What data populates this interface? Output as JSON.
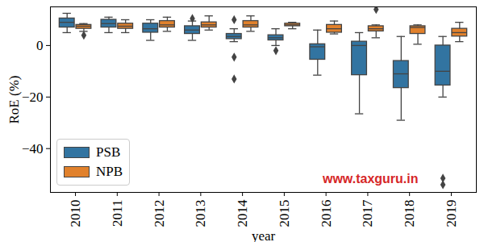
{
  "chart_data": {
    "type": "boxplot",
    "xlabel": "year",
    "ylabel": "RoE (%)",
    "categories": [
      "2010",
      "2011",
      "2012",
      "2013",
      "2014",
      "2015",
      "2016",
      "2017",
      "2018",
      "2019"
    ],
    "ylim": [
      -57,
      15
    ],
    "yticks": [
      -40,
      -20,
      0
    ],
    "grid": false,
    "legend": "lower left",
    "annotations": [
      {
        "text": "www.taxguru.in",
        "color": "#d62728"
      }
    ],
    "series": [
      {
        "name": "PSB",
        "color": "#3274a1",
        "values": [
          {
            "whisker_low": 5,
            "q1": 7,
            "median": 9,
            "q3": 10.5,
            "whisker_high": 12.5,
            "outliers": []
          },
          {
            "whisker_low": 5,
            "q1": 7,
            "median": 8.5,
            "q3": 10,
            "whisker_high": 11,
            "outliers": []
          },
          {
            "whisker_low": 2,
            "q1": 5,
            "median": 6.5,
            "q3": 8.5,
            "whisker_high": 10,
            "outliers": []
          },
          {
            "whisker_low": 2,
            "q1": 4.5,
            "median": 6,
            "q3": 7.5,
            "whisker_high": 9.5,
            "outliers": [
              10.5
            ]
          },
          {
            "whisker_low": 1.5,
            "q1": 2.5,
            "median": 3.5,
            "q3": 4.5,
            "whisker_high": 6.5,
            "outliers": [
              10,
              -4.5,
              -13
            ]
          },
          {
            "whisker_low": 0,
            "q1": 2,
            "median": 3,
            "q3": 4,
            "whisker_high": 6.5,
            "outliers": [
              -2
            ]
          },
          {
            "whisker_low": -11.5,
            "q1": -5.5,
            "median": -0.5,
            "q3": 0.5,
            "whisker_high": 6,
            "outliers": []
          },
          {
            "whisker_low": -26.5,
            "q1": -11.5,
            "median": 0,
            "q3": 1.5,
            "whisker_high": 5,
            "outliers": []
          },
          {
            "whisker_low": -29,
            "q1": -16.5,
            "median": -11,
            "q3": -6,
            "whisker_high": 3.5,
            "outliers": []
          },
          {
            "whisker_low": -20,
            "q1": -15.5,
            "median": -10,
            "q3": 0,
            "whisker_high": 3.5,
            "outliers": [
              -51.5,
              -54
            ]
          }
        ]
      },
      {
        "name": "NPB",
        "color": "#e1812c",
        "values": [
          {
            "whisker_low": 5.5,
            "q1": 6.5,
            "median": 7.5,
            "q3": 8,
            "whisker_high": 8.5,
            "outliers": [
              4
            ]
          },
          {
            "whisker_low": 5,
            "q1": 6.5,
            "median": 7.5,
            "q3": 8.5,
            "whisker_high": 10,
            "outliers": []
          },
          {
            "whisker_low": 5.5,
            "q1": 7,
            "median": 8,
            "q3": 9.5,
            "whisker_high": 11,
            "outliers": []
          },
          {
            "whisker_low": 6,
            "q1": 7,
            "median": 8,
            "q3": 9,
            "whisker_high": 11.5,
            "outliers": []
          },
          {
            "whisker_low": 5.5,
            "q1": 7,
            "median": 8,
            "q3": 9.5,
            "whisker_high": 11.5,
            "outliers": []
          },
          {
            "whisker_low": 6.5,
            "q1": 7.5,
            "median": 8,
            "q3": 8.5,
            "whisker_high": 9,
            "outliers": []
          },
          {
            "whisker_low": 4.5,
            "q1": 5,
            "median": 6.5,
            "q3": 8,
            "whisker_high": 9.5,
            "outliers": []
          },
          {
            "whisker_low": 3,
            "q1": 5.5,
            "median": 6.5,
            "q3": 7.5,
            "whisker_high": 8,
            "outliers": [
              14
            ]
          },
          {
            "whisker_low": 0.5,
            "q1": 4.5,
            "median": 7,
            "q3": 7.5,
            "whisker_high": 8,
            "outliers": []
          },
          {
            "whisker_low": 1.5,
            "q1": 3.5,
            "median": 5,
            "q3": 6.5,
            "whisker_high": 9,
            "outliers": []
          }
        ]
      }
    ]
  }
}
